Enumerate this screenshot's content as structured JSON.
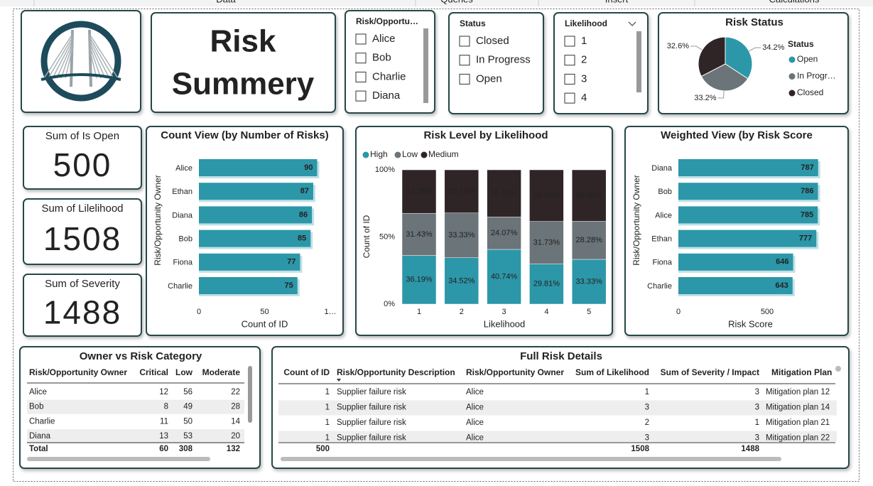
{
  "ribbon": {
    "tabs": [
      "Data",
      "Queries",
      "Insert",
      "Calculations"
    ]
  },
  "header": {
    "title_lines": [
      "Risk",
      "Summery"
    ]
  },
  "slicers": [
    {
      "title": "Risk/Opportu…",
      "items": [
        "Alice",
        "Bob",
        "Charlie",
        "Diana"
      ]
    },
    {
      "title": "Status",
      "items": [
        "Closed",
        "In Progress",
        "Open"
      ]
    },
    {
      "title": "Likelihood",
      "items": [
        "1",
        "2",
        "3",
        "4"
      ]
    }
  ],
  "cards": [
    {
      "label": "Sum of Is Open",
      "value": 500
    },
    {
      "label": "Sum of Lilelihood",
      "value": 1508
    },
    {
      "label": "Sum of Severity",
      "value": 1488
    }
  ],
  "chart_data": [
    {
      "type": "pie",
      "title": "Risk Status",
      "legend_title": "Status",
      "legend": "right",
      "categories": [
        "Open",
        "In Progr…",
        "Closed"
      ],
      "values": [
        34.2,
        33.2,
        32.6
      ],
      "value_labels": [
        "34.2%",
        "33.2%",
        "32.6%"
      ],
      "colors": [
        "#2c97a8",
        "#6b7478",
        "#2f2526"
      ]
    },
    {
      "type": "hbar",
      "title": "Count View (by Number of Risks)",
      "x_label": "Count of ID",
      "y_label": "Risk/Opportunity Owner",
      "categories": [
        "Alice",
        "Ethan",
        "Diana",
        "Bob",
        "Fiona",
        "Charlie"
      ],
      "values": [
        90,
        87,
        86,
        85,
        77,
        75
      ],
      "color": "#2c97a8",
      "xlim": [
        0,
        100
      ],
      "xticks": [
        0,
        50,
        {
          "value": 100,
          "label": "1…"
        }
      ]
    },
    {
      "type": "stacked_bar",
      "title": "Risk Level by Likelihood",
      "x_label": "Likelihood",
      "y_label": "Count of ID",
      "legend": "top-left",
      "categories": [
        "1",
        "2",
        "3",
        "4",
        "5"
      ],
      "series": [
        {
          "name": "High",
          "color": "#2c97a8",
          "values": [
            36.19,
            34.52,
            40.74,
            29.81,
            33.33
          ],
          "value_labels": [
            "36.19%",
            "34.52%",
            "40.74%",
            "29.81%",
            "33.33%"
          ]
        },
        {
          "name": "Low",
          "color": "#6b7478",
          "values": [
            31.43,
            33.33,
            24.07,
            31.73,
            28.28
          ],
          "value_labels": [
            "31.43%",
            "33.33%",
            "24.07%",
            "31.73%",
            "28.28%"
          ]
        },
        {
          "name": "Medium",
          "color": "#2f2526",
          "values": [
            32.38,
            32.14,
            35.19,
            38.46,
            38.38
          ],
          "value_labels": [
            "32.38%",
            "32.14%",
            "35.19%",
            "38.46%",
            "38.38%"
          ]
        }
      ],
      "ylim": [
        0,
        100
      ],
      "yticks": [
        {
          "value": 0,
          "label": "0%"
        },
        {
          "value": 50,
          "label": "50%"
        },
        {
          "value": 100,
          "label": "100%"
        }
      ]
    },
    {
      "type": "hbar",
      "title": "Weighted View (by Risk Score",
      "x_label": "Risk Score",
      "y_label": "Risk/Opportunity Owner",
      "categories": [
        "Diana",
        "Bob",
        "Alice",
        "Ethan",
        "Fiona",
        "Charlie"
      ],
      "values": [
        787,
        786,
        785,
        777,
        646,
        643
      ],
      "color": "#2c97a8",
      "xlim": [
        0,
        900
      ],
      "xticks": [
        0,
        500
      ]
    }
  ],
  "tables": [
    {
      "title": "Owner vs Risk Category",
      "columns": [
        "Risk/Opportunity Owner",
        "Critical",
        "Low",
        "Moderate"
      ],
      "rows": [
        [
          "Alice",
          12,
          56,
          22
        ],
        [
          "Bob",
          8,
          49,
          28
        ],
        [
          "Charlie",
          11,
          50,
          14
        ],
        [
          "Diana",
          13,
          53,
          20
        ]
      ],
      "total": [
        "Total",
        60,
        308,
        132
      ]
    },
    {
      "title": "Full Risk Details",
      "columns": [
        "Count of ID",
        "Risk/Opportunity Description",
        "Risk/Opportunity Owner",
        "Sum of Likelihood",
        "Sum of Severity / Impact",
        "Mitigation Plan"
      ],
      "rows": [
        [
          1,
          "Supplier failure risk",
          "Alice",
          1,
          3,
          "Mitigation plan 12"
        ],
        [
          1,
          "Supplier failure risk",
          "Alice",
          3,
          3,
          "Mitigation plan 14"
        ],
        [
          1,
          "Supplier failure risk",
          "Alice",
          2,
          1,
          "Mitigation plan 21"
        ],
        [
          1,
          "Supplier failure risk",
          "Alice",
          3,
          3,
          "Mitigation plan 22"
        ]
      ],
      "total": [
        500,
        1508,
        1488
      ]
    }
  ]
}
